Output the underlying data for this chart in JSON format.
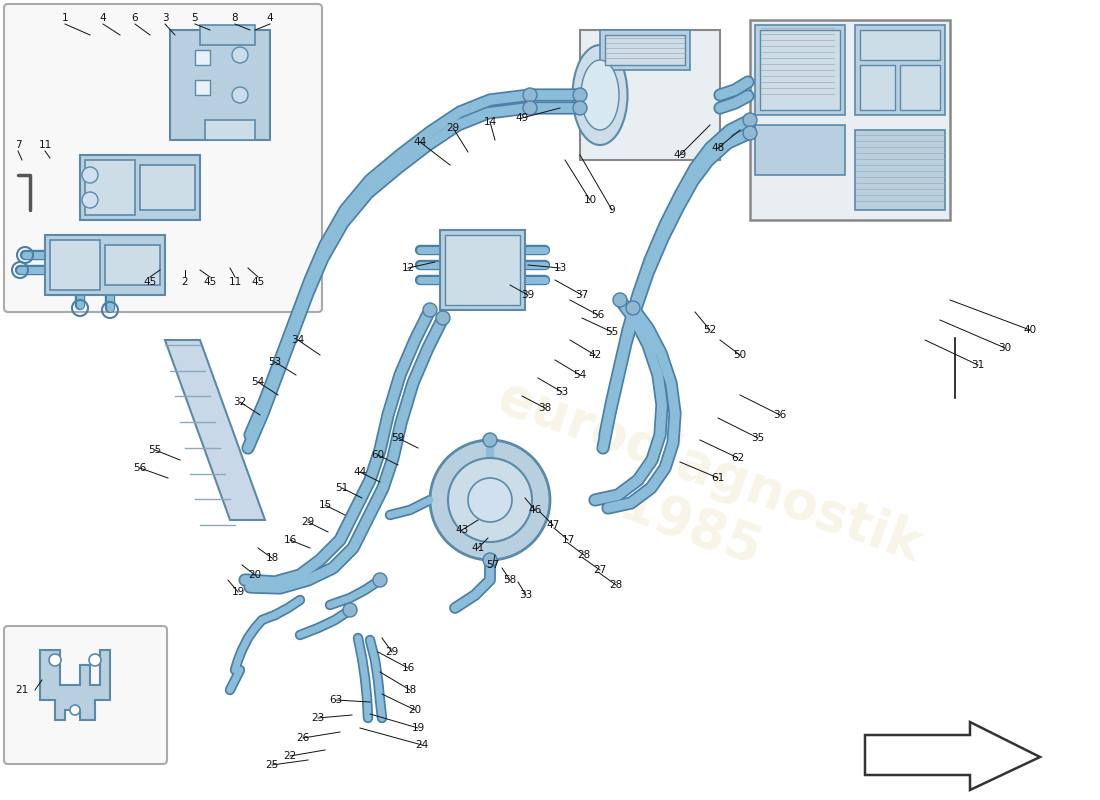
{
  "bg_color": "#ffffff",
  "hose_color": "#8bbdd9",
  "hose_dark": "#4a7fa8",
  "hose_lw": 7,
  "comp_fill": "#b8cfe0",
  "comp_edge": "#5a8aaa",
  "comp_fill2": "#ccdde8",
  "inset_bg": "#f5f5f5",
  "label_color": "#111111",
  "label_fs": 7.5,
  "line_color": "#333333",
  "line_lw": 0.7,
  "arrow_fill": "#ffffff",
  "watermark": "#c8a840",
  "figsize": [
    11.0,
    8.0
  ],
  "dpi": 100
}
